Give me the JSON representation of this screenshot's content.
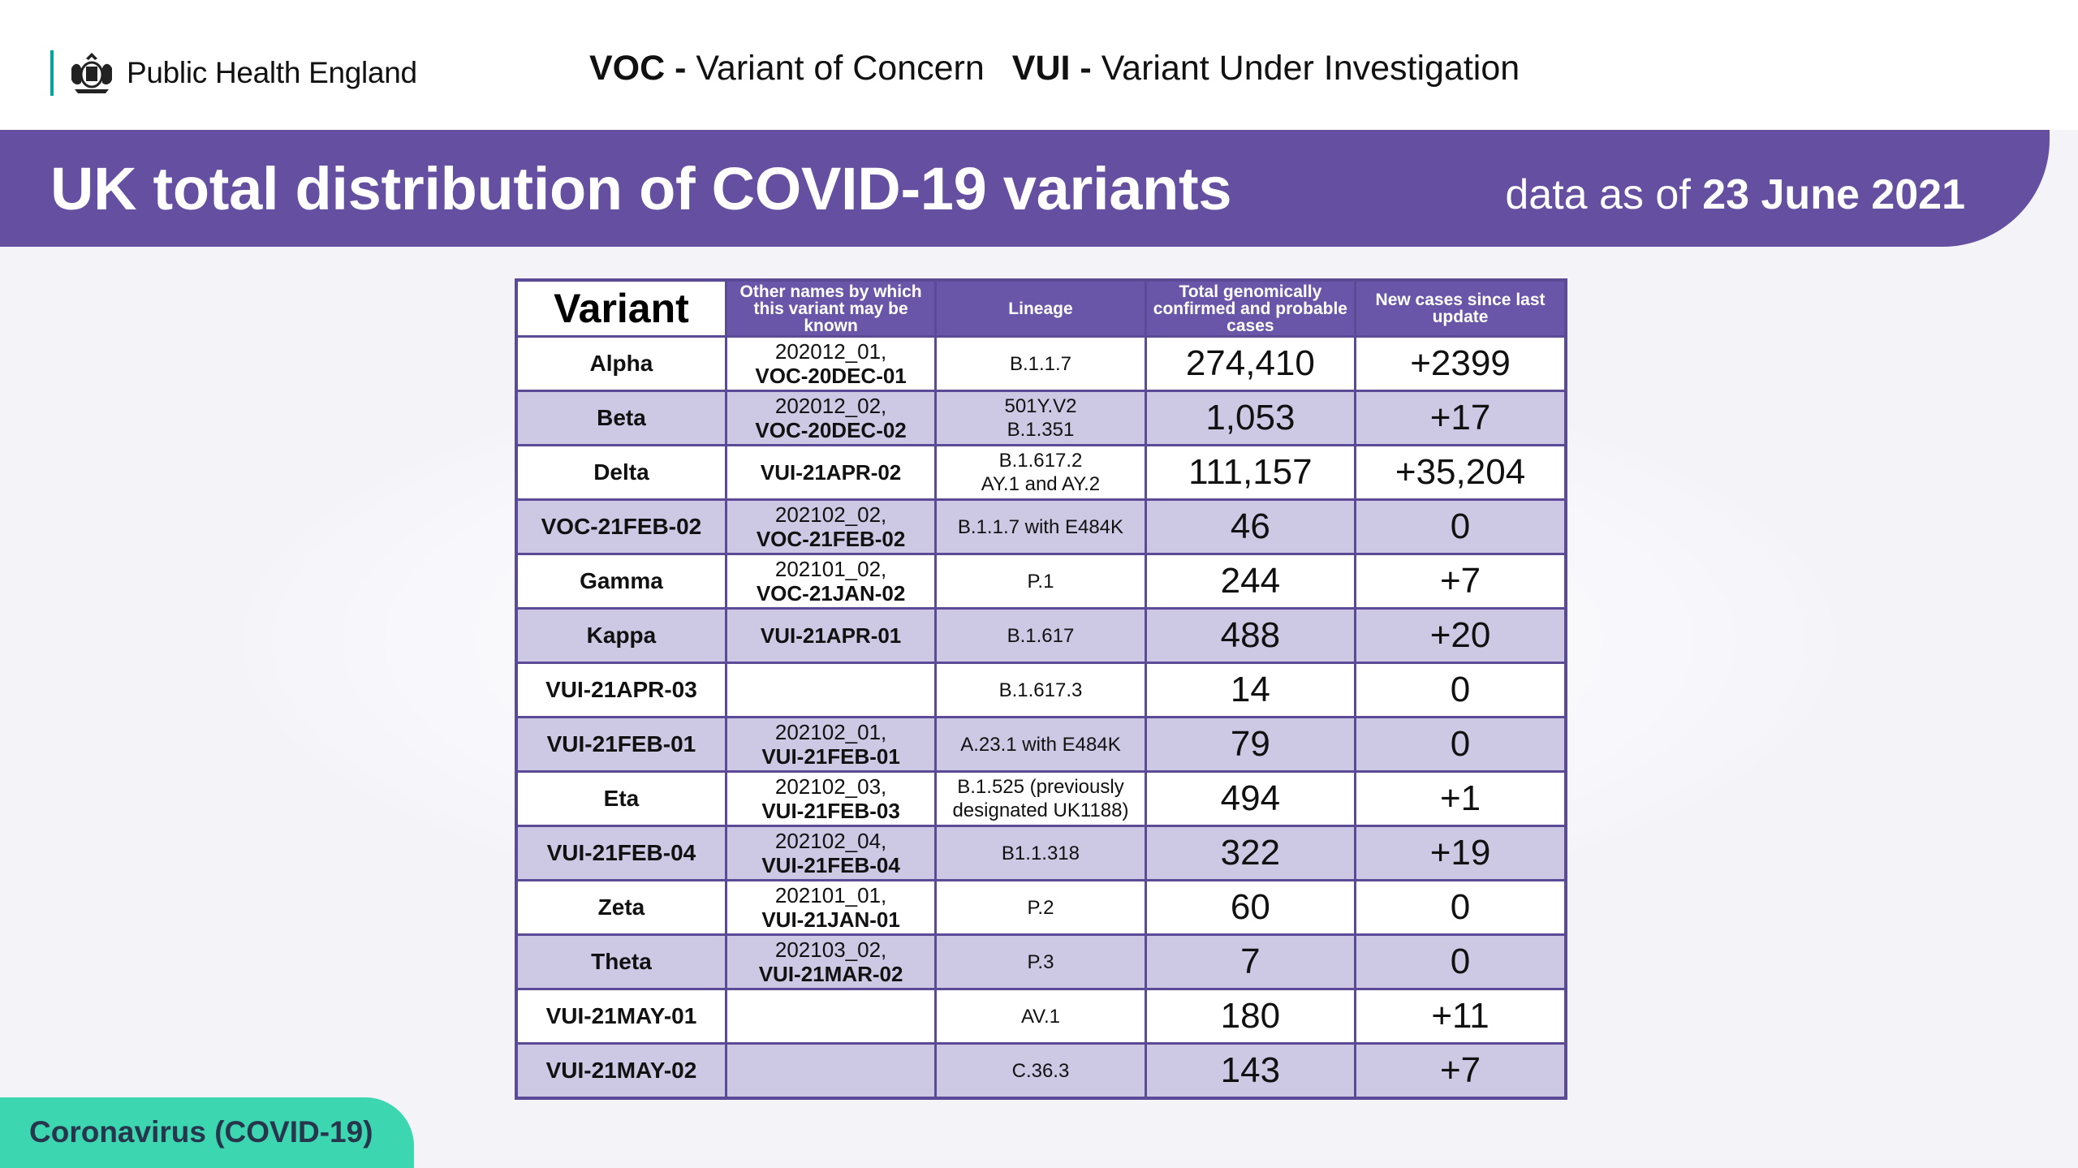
{
  "header": {
    "org_name": "Public Health England",
    "legend_voc_abbr": "VOC",
    "legend_voc_text": "Variant of Concern",
    "legend_vui_abbr": "VUI",
    "legend_vui_text": "Variant Under Investigation",
    "legend_separator": "-"
  },
  "banner": {
    "title": "UK total distribution of COVID-19 variants",
    "date_prefix": "data as of",
    "date_value": "23 June 2021"
  },
  "footer": {
    "tab_label": "Coronavirus (COVID-19)"
  },
  "colors": {
    "brand_purple": "#644fa1",
    "teal": "#00a5a0",
    "footer_green": "#3cd6b0",
    "row_alt": "#cdc8e4"
  },
  "icons": {
    "logo": "royal-crest-icon"
  },
  "table": {
    "headers": {
      "variant": "Variant",
      "other_names": "Other names by which this variant may be known",
      "lineage": "Lineage",
      "total": "Total genomically confirmed and probable cases",
      "new_cases": "New cases since last update"
    },
    "rows": [
      {
        "variant": "Alpha",
        "name1": "202012_01,",
        "name2": "VOC-20DEC-01",
        "lineage1": "B.1.1.7",
        "lineage2": "",
        "total": "274,410",
        "new": "+2399"
      },
      {
        "variant": "Beta",
        "name1": "202012_02,",
        "name2": "VOC-20DEC-02",
        "lineage1": "501Y.V2",
        "lineage2": "B.1.351",
        "total": "1,053",
        "new": "+17"
      },
      {
        "variant": "Delta",
        "name1": "",
        "name2": "VUI-21APR-02",
        "lineage1": "B.1.617.2",
        "lineage2": "AY.1 and AY.2",
        "total": "111,157",
        "new": "+35,204"
      },
      {
        "variant": "VOC-21FEB-02",
        "name1": "202102_02,",
        "name2": "VOC-21FEB-02",
        "lineage1": "B.1.1.7 with E484K",
        "lineage2": "",
        "total": "46",
        "new": "0"
      },
      {
        "variant": "Gamma",
        "name1": "202101_02,",
        "name2": "VOC-21JAN-02",
        "lineage1": "P.1",
        "lineage2": "",
        "total": "244",
        "new": "+7"
      },
      {
        "variant": "Kappa",
        "name1": "",
        "name2": "VUI-21APR-01",
        "lineage1": "B.1.617",
        "lineage2": "",
        "total": "488",
        "new": "+20"
      },
      {
        "variant": "VUI-21APR-03",
        "name1": "",
        "name2": "",
        "lineage1": "B.1.617.3",
        "lineage2": "",
        "total": "14",
        "new": "0"
      },
      {
        "variant": "VUI-21FEB-01",
        "name1": "202102_01,",
        "name2": "VUI-21FEB-01",
        "lineage1": "A.23.1 with E484K",
        "lineage2": "",
        "total": "79",
        "new": "0"
      },
      {
        "variant": "Eta",
        "name1": "202102_03,",
        "name2": "VUI-21FEB-03",
        "lineage1": "B.1.525 (previously",
        "lineage2": "designated UK1188)",
        "total": "494",
        "new": "+1"
      },
      {
        "variant": "VUI-21FEB-04",
        "name1": "202102_04,",
        "name2": "VUI-21FEB-04",
        "lineage1": "B1.1.318",
        "lineage2": "",
        "total": "322",
        "new": "+19"
      },
      {
        "variant": "Zeta",
        "name1": "202101_01,",
        "name2": "VUI-21JAN-01",
        "lineage1": "P.2",
        "lineage2": "",
        "total": "60",
        "new": "0"
      },
      {
        "variant": "Theta",
        "name1": "202103_02,",
        "name2": "VUI-21MAR-02",
        "lineage1": "P.3",
        "lineage2": "",
        "total": "7",
        "new": "0"
      },
      {
        "variant": "VUI-21MAY-01",
        "name1": "",
        "name2": "",
        "lineage1": "AV.1",
        "lineage2": "",
        "total": "180",
        "new": "+11"
      },
      {
        "variant": "VUI-21MAY-02",
        "name1": "",
        "name2": "",
        "lineage1": "C.36.3",
        "lineage2": "",
        "total": "143",
        "new": "+7"
      }
    ]
  }
}
